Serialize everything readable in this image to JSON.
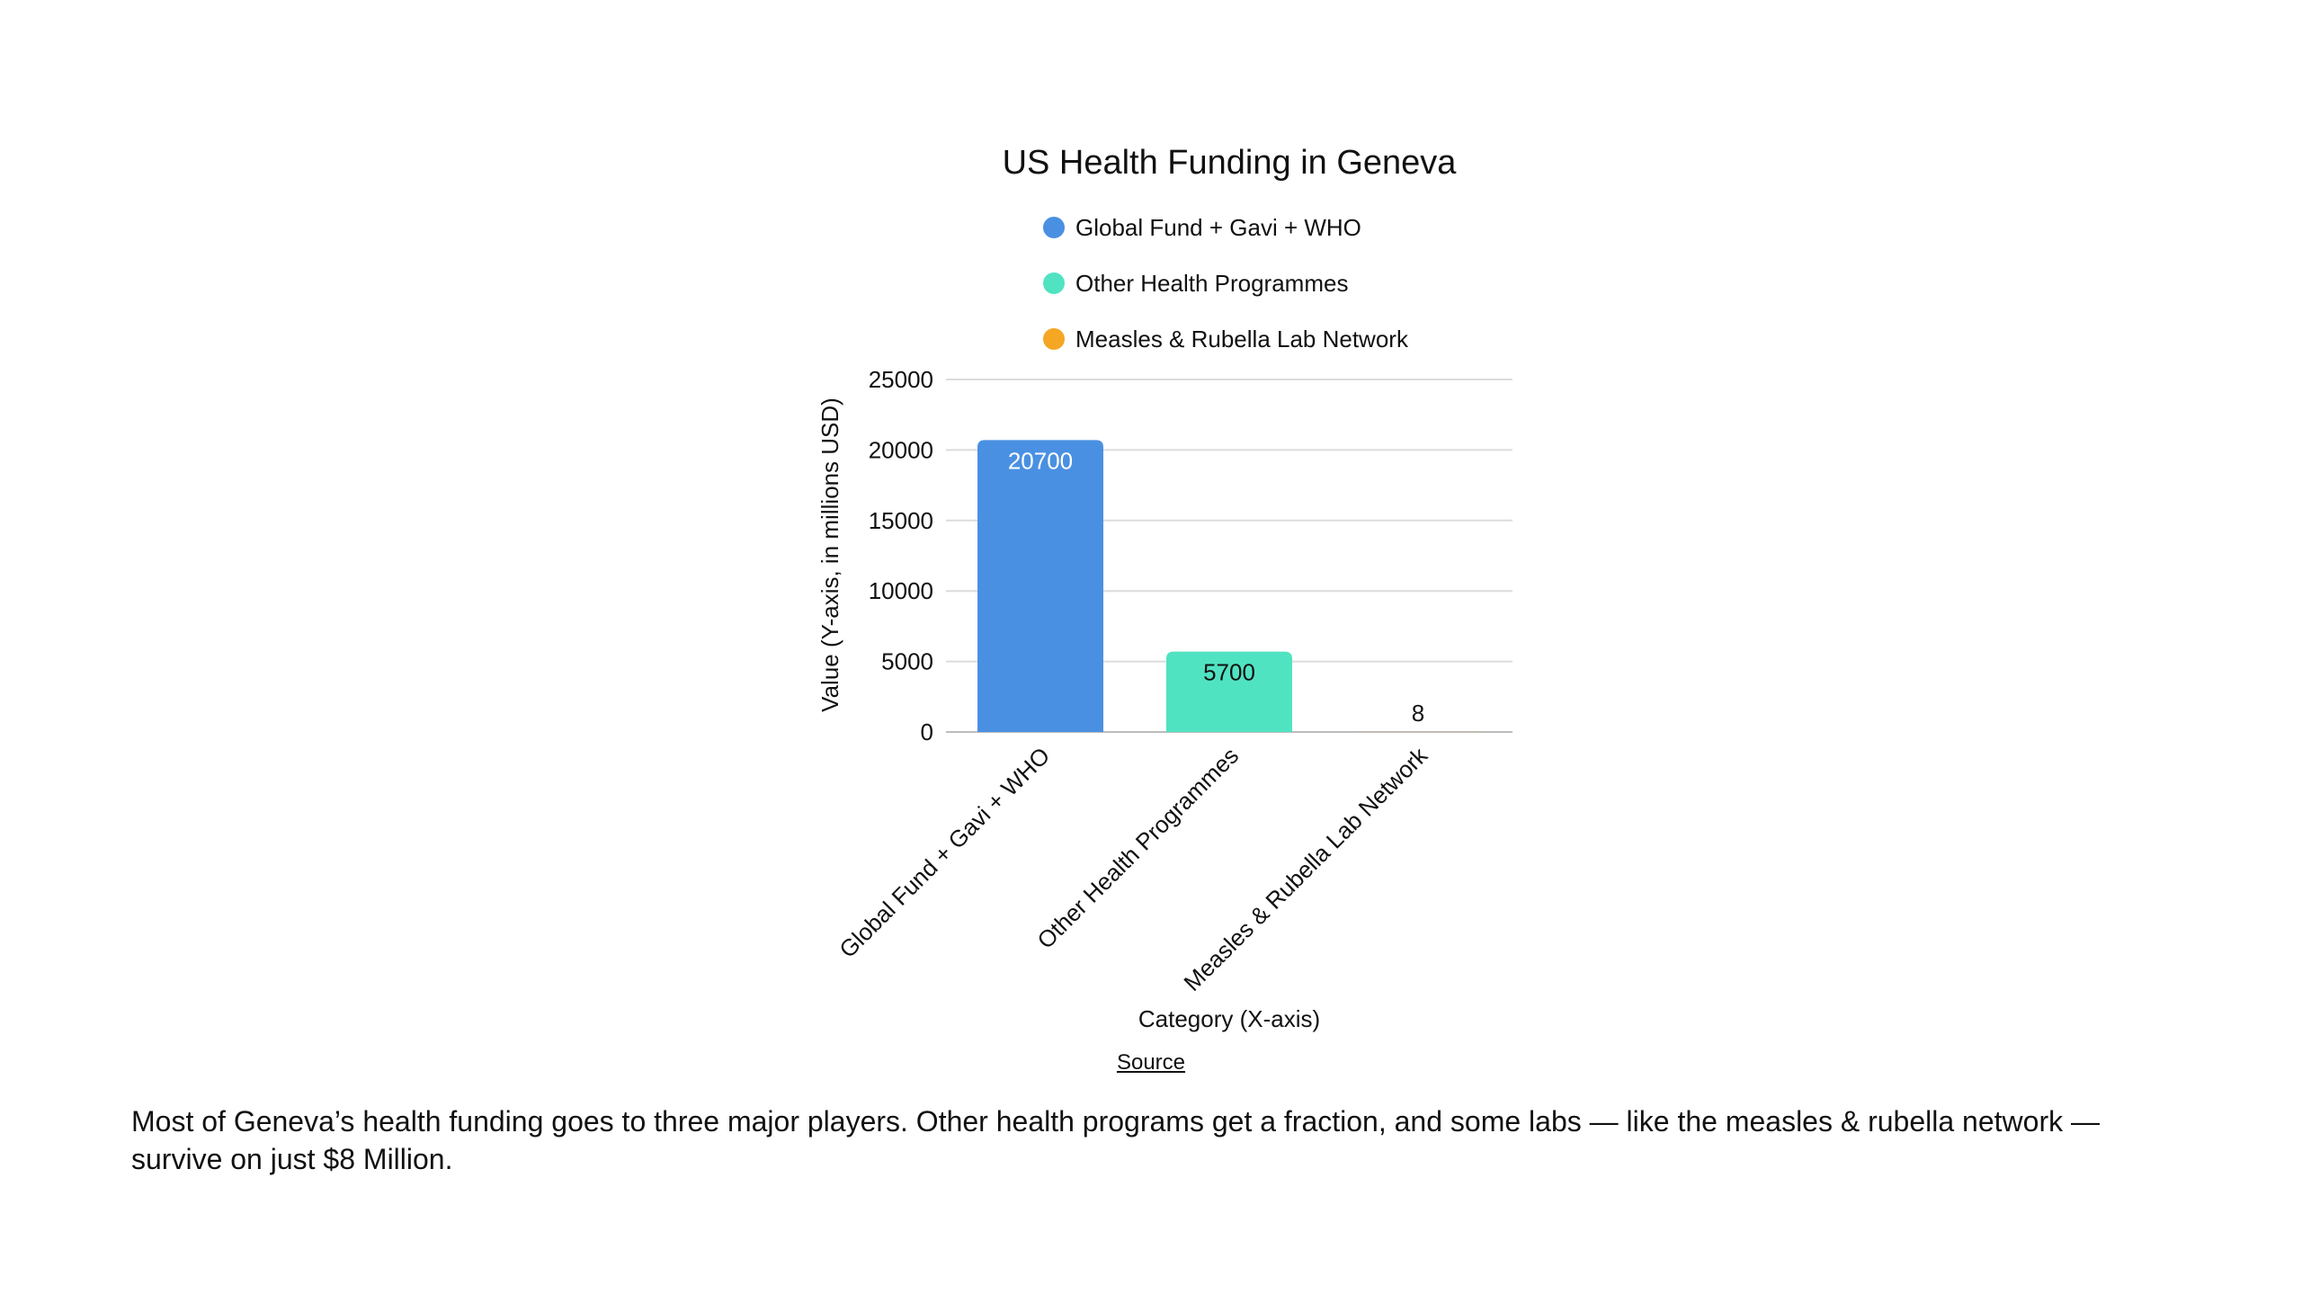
{
  "chart_data": {
    "type": "bar",
    "title": "US Health Funding in Geneva",
    "categories": [
      "Global Fund + Gavi + WHO",
      "Other Health Programmes",
      "Measles & Rubella Lab Network"
    ],
    "values": [
      20700,
      5700,
      8
    ],
    "data_labels": [
      "20700",
      "5700",
      "8"
    ],
    "colors": [
      "#4a90e2",
      "#50e3c2",
      "#f5a623"
    ],
    "legend": [
      "Global Fund + Gavi + WHO",
      "Other Health Programmes",
      "Measles & Rubella Lab Network"
    ],
    "legend_position": "top",
    "xlabel": "Category (X-axis)",
    "ylabel": "Value (Y-axis, in millions USD)",
    "ylim": [
      0,
      25000
    ],
    "yticks": [
      "0",
      "5000",
      "10000",
      "15000",
      "20000",
      "25000"
    ],
    "grid": true
  },
  "source": {
    "label": "Source"
  },
  "caption": "Most of Geneva’s health funding goes to three major players. Other health programs get a fraction, and some labs — like the measles & rubella network — survive on just $8 Million."
}
